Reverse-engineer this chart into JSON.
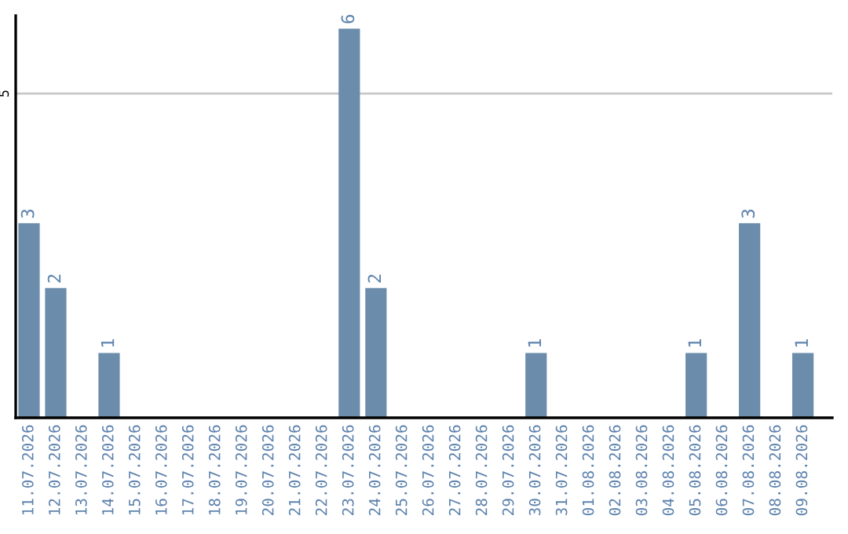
{
  "chart_data": {
    "type": "bar",
    "categories": [
      "11.07.2026",
      "12.07.2026",
      "13.07.2026",
      "14.07.2026",
      "15.07.2026",
      "16.07.2026",
      "17.07.2026",
      "18.07.2026",
      "19.07.2026",
      "20.07.2026",
      "21.07.2026",
      "22.07.2026",
      "23.07.2026",
      "24.07.2026",
      "25.07.2026",
      "26.07.2026",
      "27.07.2026",
      "28.07.2026",
      "29.07.2026",
      "30.07.2026",
      "31.07.2026",
      "01.08.2026",
      "02.08.2026",
      "03.08.2026",
      "04.08.2026",
      "05.08.2026",
      "06.08.2026",
      "07.08.2026",
      "08.08.2026",
      "09.08.2026"
    ],
    "values": [
      3,
      2,
      0,
      1,
      0,
      0,
      0,
      0,
      0,
      0,
      0,
      0,
      6,
      2,
      0,
      0,
      0,
      0,
      0,
      1,
      0,
      0,
      0,
      0,
      0,
      1,
      0,
      3,
      0,
      1
    ],
    "value_labels": [
      "3",
      "2",
      null,
      "1",
      null,
      null,
      null,
      null,
      null,
      null,
      null,
      null,
      "6",
      "2",
      null,
      null,
      null,
      null,
      null,
      "1",
      null,
      null,
      null,
      null,
      null,
      "1",
      null,
      "3",
      null,
      "1"
    ],
    "color": "#6b8cab",
    "ylim": [
      0,
      6.2
    ],
    "yticks": [
      5
    ],
    "grid": "y",
    "legend": false
  }
}
